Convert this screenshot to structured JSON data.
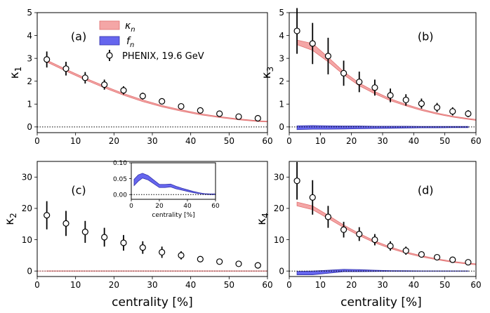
{
  "figure": {
    "xlabel": "centrality [%]"
  },
  "legend": {
    "kappa_label": "κ",
    "kappa_sub": "n",
    "f_label": "f",
    "f_sub": "n",
    "phenix_label": "PHENIX, 19.6 GeV"
  },
  "colors": {
    "kappa_band": "#f4a6a6",
    "kappa_line": "#e07070",
    "f_band": "#6666ee",
    "f_line": "#3333aa",
    "marker_edge": "#000000",
    "marker_face": "#ffffff"
  },
  "chart_data": [
    {
      "id": "a",
      "type": "line",
      "panel_label": "(a)",
      "ylabel": "κ",
      "ylabel_sub": "1",
      "xlim": [
        0,
        60
      ],
      "ylim": [
        -0.25,
        5
      ],
      "xticks": [
        "0",
        "10",
        "20",
        "30",
        "40",
        "50",
        "60"
      ],
      "yticks": [
        "0",
        "1",
        "2",
        "3",
        "4",
        "5"
      ],
      "xlabel": "",
      "kappa_band": {
        "x": [
          2.5,
          7.5,
          12.5,
          17.5,
          22.5,
          27.5,
          32.5,
          37.5,
          42.5,
          47.5,
          52.5,
          57.5,
          60
        ],
        "lower": [
          2.84,
          2.44,
          2.06,
          1.71,
          1.39,
          1.11,
          0.88,
          0.69,
          0.53,
          0.41,
          0.31,
          0.24,
          0.22
        ],
        "upper": [
          2.92,
          2.52,
          2.14,
          1.79,
          1.46,
          1.18,
          0.94,
          0.75,
          0.58,
          0.45,
          0.35,
          0.27,
          0.25
        ]
      },
      "phenix": {
        "x": [
          2.5,
          7.5,
          12.5,
          17.5,
          22.5,
          27.5,
          32.5,
          37.5,
          42.5,
          47.5,
          52.5,
          57.5
        ],
        "y": [
          2.95,
          2.55,
          2.15,
          1.85,
          1.6,
          1.35,
          1.12,
          0.9,
          0.72,
          0.58,
          0.45,
          0.38
        ],
        "err": [
          0.35,
          0.3,
          0.25,
          0.22,
          0.18,
          0.15,
          0.1,
          0.08,
          0.06,
          0.05,
          0.05,
          0.04
        ]
      },
      "zero_line": true,
      "legend": true
    },
    {
      "id": "b",
      "type": "line",
      "panel_label": "(b)",
      "ylabel": "κ",
      "ylabel_sub": "3",
      "xlim": [
        0,
        60
      ],
      "ylim": [
        -0.25,
        5
      ],
      "xticks": [
        "0",
        "10",
        "20",
        "30",
        "40",
        "50",
        "60"
      ],
      "yticks": [
        "0",
        "1",
        "2",
        "3",
        "4",
        "5"
      ],
      "xlabel": "",
      "kappa_band": {
        "x": [
          2.5,
          7.5,
          12.5,
          17.5,
          22.5,
          27.5,
          32.5,
          37.5,
          42.5,
          47.5,
          52.5,
          57.5,
          60
        ],
        "lower": [
          3.6,
          3.35,
          2.85,
          2.28,
          1.8,
          1.45,
          1.15,
          0.92,
          0.72,
          0.56,
          0.43,
          0.33,
          0.29
        ],
        "upper": [
          3.8,
          3.65,
          3.05,
          2.42,
          1.92,
          1.55,
          1.23,
          0.99,
          0.78,
          0.61,
          0.47,
          0.37,
          0.33
        ]
      },
      "f_band": {
        "x": [
          2.5,
          7.5,
          12.5,
          17.5,
          22.5,
          27.5,
          32.5,
          37.5,
          42.5,
          47.5,
          52.5,
          57.5
        ],
        "lower": [
          -0.12,
          -0.1,
          -0.1,
          -0.09,
          -0.08,
          -0.07,
          -0.06,
          -0.05,
          -0.04,
          -0.04,
          -0.03,
          -0.03
        ],
        "upper": [
          0.05,
          0.06,
          0.05,
          0.04,
          0.04,
          0.03,
          0.03,
          0.03,
          0.02,
          0.02,
          0.02,
          0.02
        ]
      },
      "phenix": {
        "x": [
          2.5,
          7.5,
          12.5,
          17.5,
          22.5,
          27.5,
          32.5,
          37.5,
          42.5,
          47.5,
          52.5,
          57.5
        ],
        "y": [
          4.2,
          3.65,
          3.1,
          2.35,
          1.97,
          1.72,
          1.38,
          1.18,
          1.02,
          0.85,
          0.68,
          0.58
        ],
        "err": [
          1.0,
          0.9,
          0.8,
          0.55,
          0.45,
          0.35,
          0.3,
          0.25,
          0.22,
          0.2,
          0.18,
          0.15
        ]
      },
      "zero_line": true
    },
    {
      "id": "c",
      "type": "line",
      "panel_label": "(c)",
      "ylabel": "κ",
      "ylabel_sub": "2",
      "xlim": [
        0,
        60
      ],
      "ylim": [
        -1.75,
        35
      ],
      "xticks": [
        "0",
        "10",
        "20",
        "30",
        "40",
        "50",
        "60"
      ],
      "yticks": [
        "0",
        "10",
        "20",
        "30"
      ],
      "xlabel": "centrality [%]",
      "kappa_band": {
        "x": [
          2.5,
          60
        ],
        "lower": [
          -0.04,
          -0.04
        ],
        "upper": [
          0.04,
          0.04
        ]
      },
      "phenix": {
        "x": [
          2.5,
          7.5,
          12.5,
          17.5,
          22.5,
          27.5,
          32.5,
          37.5,
          42.5,
          47.5,
          52.5,
          57.5
        ],
        "y": [
          17.8,
          15.2,
          12.5,
          10.8,
          9.0,
          7.5,
          6.0,
          5.0,
          3.8,
          3.0,
          2.3,
          1.8
        ],
        "err": [
          4.5,
          4.0,
          3.5,
          3.0,
          2.5,
          2.0,
          1.8,
          1.3,
          0.9,
          0.6,
          0.5,
          0.4
        ]
      },
      "zero_line": true,
      "inset": {
        "xlabel": "centrality [%]",
        "xlim": [
          0,
          60
        ],
        "ylim": [
          -0.015,
          0.1
        ],
        "xticks": [
          "0",
          "20",
          "40",
          "60"
        ],
        "yticks": [
          "0.00",
          "0.05",
          "0.10"
        ],
        "f_band": {
          "x": [
            2,
            5,
            8,
            12,
            16,
            20,
            24,
            28,
            32,
            36,
            40,
            44,
            48,
            52,
            56,
            60
          ],
          "lower": [
            0.028,
            0.042,
            0.052,
            0.046,
            0.034,
            0.022,
            0.022,
            0.024,
            0.018,
            0.014,
            0.01,
            0.006,
            0.003,
            0.001,
            0.0,
            0.0
          ],
          "upper": [
            0.048,
            0.062,
            0.067,
            0.06,
            0.046,
            0.032,
            0.032,
            0.033,
            0.026,
            0.02,
            0.015,
            0.01,
            0.006,
            0.003,
            0.002,
            0.002
          ]
        }
      }
    },
    {
      "id": "d",
      "type": "line",
      "panel_label": "(d)",
      "ylabel": "κ",
      "ylabel_sub": "4",
      "xlim": [
        0,
        60
      ],
      "ylim": [
        -1.75,
        35
      ],
      "xticks": [
        "0",
        "10",
        "20",
        "30",
        "40",
        "50",
        "60"
      ],
      "yticks": [
        "0",
        "10",
        "20",
        "30"
      ],
      "xlabel": "centrality [%]",
      "kappa_band": {
        "x": [
          2.5,
          7.5,
          12.5,
          17.5,
          22.5,
          27.5,
          32.5,
          37.5,
          42.5,
          47.5,
          52.5,
          57.5,
          60
        ],
        "lower": [
          20.8,
          19.6,
          16.8,
          13.9,
          11.3,
          9.0,
          7.2,
          5.7,
          4.5,
          3.6,
          2.8,
          2.2,
          2.0
        ],
        "upper": [
          22.0,
          20.8,
          17.8,
          14.7,
          12.0,
          9.6,
          7.7,
          6.1,
          4.9,
          3.9,
          3.1,
          2.5,
          2.3
        ]
      },
      "f_band": {
        "x": [
          2.5,
          7.5,
          12.5,
          17.5,
          22.5,
          27.5,
          32.5,
          37.5,
          42.5,
          47.5,
          52.5,
          57.5
        ],
        "lower": [
          -1.2,
          -1.2,
          -0.7,
          -0.2,
          -0.2,
          -0.15,
          -0.1,
          -0.1,
          -0.05,
          -0.05,
          -0.05,
          -0.05
        ],
        "upper": [
          -0.1,
          0.0,
          0.25,
          0.55,
          0.45,
          0.25,
          0.12,
          0.08,
          0.05,
          0.05,
          0.05,
          0.05
        ]
      },
      "phenix": {
        "x": [
          2.5,
          7.5,
          12.5,
          17.5,
          22.5,
          27.5,
          32.5,
          37.5,
          42.5,
          47.5,
          52.5,
          57.5
        ],
        "y": [
          28.8,
          23.5,
          17.3,
          13.2,
          11.8,
          10.0,
          8.0,
          6.5,
          5.3,
          4.4,
          3.6,
          2.8
        ],
        "err": [
          6.0,
          5.5,
          3.5,
          2.5,
          2.2,
          1.8,
          1.5,
          1.3,
          1.0,
          0.7,
          0.5,
          0.4
        ]
      },
      "zero_line": true
    }
  ]
}
